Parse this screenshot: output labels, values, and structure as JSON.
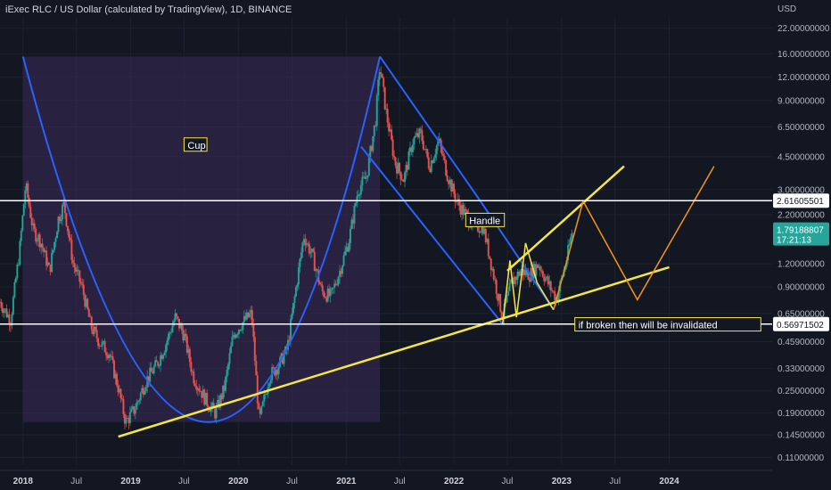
{
  "header": {
    "title": "iExec RLC / US Dollar (calculated by TradingView), 1D, BINANCE"
  },
  "colors": {
    "background": "#131722",
    "grid": "#1e222d",
    "up_candle": "#26a69a",
    "down_candle": "#ef5350",
    "cup_line": "#2962ff",
    "cup_fill": "#3b2a5a",
    "trend_line": "#f5e642",
    "forecast_line": "#f7931a",
    "level_line": "#ffffff",
    "current_price_badge": "#26a69a"
  },
  "chart_data": {
    "type": "candlestick",
    "title": "iExec RLC / US Dollar (calculated by TradingView), 1D, BINANCE",
    "y_unit": "USD",
    "y_scale": "log",
    "ylim": [
      0.1,
      25
    ],
    "xlim": [
      "2017-10-15",
      "2024-12-15"
    ],
    "y_ticks": [
      "22.00000000",
      "16.00000000",
      "12.00000000",
      "9.00000000",
      "6.50000000",
      "4.50000000",
      "3.00000000",
      "2.20000000",
      "1.20000000",
      "0.90000000",
      "0.65000000",
      "0.45900000",
      "0.33000000",
      "0.25000000",
      "0.19000000",
      "0.14500000",
      "0.11000000"
    ],
    "y_tick_values": [
      22,
      16,
      12,
      9,
      6.5,
      4.5,
      3,
      2.2,
      1.2,
      0.9,
      0.65,
      0.459,
      0.33,
      0.25,
      0.19,
      0.145,
      0.11
    ],
    "x_ticks": [
      {
        "label": "2018",
        "date": "2018-01-01",
        "year": true
      },
      {
        "label": "Jul",
        "date": "2018-07-01",
        "year": false
      },
      {
        "label": "2019",
        "date": "2019-01-01",
        "year": true
      },
      {
        "label": "Jul",
        "date": "2019-07-01",
        "year": false
      },
      {
        "label": "2020",
        "date": "2020-01-01",
        "year": true
      },
      {
        "label": "Jul",
        "date": "2020-07-01",
        "year": false
      },
      {
        "label": "2021",
        "date": "2021-01-01",
        "year": true
      },
      {
        "label": "Jul",
        "date": "2021-07-01",
        "year": false
      },
      {
        "label": "2022",
        "date": "2022-01-01",
        "year": true
      },
      {
        "label": "Jul",
        "date": "2022-07-01",
        "year": false
      },
      {
        "label": "2023",
        "date": "2023-01-01",
        "year": true
      },
      {
        "label": "Jul",
        "date": "2023-07-01",
        "year": false
      },
      {
        "label": "2024",
        "date": "2024-01-01",
        "year": true
      }
    ],
    "price_path": [
      [
        "2017-10-15",
        0.75
      ],
      [
        "2017-11-20",
        0.6
      ],
      [
        "2017-12-20",
        1.4
      ],
      [
        "2018-01-10",
        3.2
      ],
      [
        "2018-02-05",
        1.8
      ],
      [
        "2018-03-01",
        1.6
      ],
      [
        "2018-04-01",
        1.1
      ],
      [
        "2018-05-01",
        2.1
      ],
      [
        "2018-05-20",
        2.5
      ],
      [
        "2018-06-20",
        1.2
      ],
      [
        "2018-07-20",
        0.9
      ],
      [
        "2018-08-20",
        0.55
      ],
      [
        "2018-09-20",
        0.45
      ],
      [
        "2018-10-20",
        0.4
      ],
      [
        "2018-11-20",
        0.26
      ],
      [
        "2018-12-15",
        0.17
      ],
      [
        "2019-01-15",
        0.2
      ],
      [
        "2019-02-20",
        0.28
      ],
      [
        "2019-04-01",
        0.35
      ],
      [
        "2019-05-01",
        0.45
      ],
      [
        "2019-06-01",
        0.62
      ],
      [
        "2019-07-01",
        0.5
      ],
      [
        "2019-08-01",
        0.3
      ],
      [
        "2019-09-15",
        0.22
      ],
      [
        "2019-10-15",
        0.19
      ],
      [
        "2019-11-15",
        0.26
      ],
      [
        "2019-12-15",
        0.5
      ],
      [
        "2020-01-15",
        0.58
      ],
      [
        "2020-02-15",
        0.65
      ],
      [
        "2020-03-12",
        0.17
      ],
      [
        "2020-04-15",
        0.3
      ],
      [
        "2020-05-15",
        0.34
      ],
      [
        "2020-06-15",
        0.42
      ],
      [
        "2020-07-15",
        0.9
      ],
      [
        "2020-08-10",
        1.7
      ],
      [
        "2020-09-10",
        1.3
      ],
      [
        "2020-10-10",
        0.85
      ],
      [
        "2020-11-10",
        0.8
      ],
      [
        "2020-12-10",
        1.1
      ],
      [
        "2021-01-10",
        1.6
      ],
      [
        "2021-02-10",
        3.0
      ],
      [
        "2021-03-10",
        3.5
      ],
      [
        "2021-04-10",
        7.0
      ],
      [
        "2021-04-25",
        14.0
      ],
      [
        "2021-05-15",
        8.0
      ],
      [
        "2021-06-15",
        4.2
      ],
      [
        "2021-07-15",
        3.4
      ],
      [
        "2021-08-15",
        5.5
      ],
      [
        "2021-09-10",
        6.0
      ],
      [
        "2021-10-10",
        4.0
      ],
      [
        "2021-11-10",
        5.5
      ],
      [
        "2021-12-10",
        3.6
      ],
      [
        "2022-01-10",
        2.6
      ],
      [
        "2022-02-10",
        2.2
      ],
      [
        "2022-03-10",
        1.9
      ],
      [
        "2022-04-10",
        1.9
      ],
      [
        "2022-05-10",
        1.15
      ],
      [
        "2022-06-15",
        0.62
      ],
      [
        "2022-07-15",
        0.95
      ],
      [
        "2022-08-15",
        1.1
      ],
      [
        "2022-09-15",
        1.05
      ],
      [
        "2022-10-15",
        1.2
      ],
      [
        "2022-11-15",
        0.95
      ],
      [
        "2022-12-15",
        0.78
      ],
      [
        "2023-01-15",
        1.2
      ],
      [
        "2023-02-06",
        1.79
      ]
    ],
    "current_price": {
      "value": 1.79188807,
      "label": "1.79188807",
      "countdown": "17:21:13"
    },
    "levels": [
      {
        "name": "resistance",
        "value": 2.61605501,
        "label": "2.61605501"
      },
      {
        "name": "support",
        "value": 0.56971502,
        "label": "0.56971502"
      }
    ],
    "annotations": [
      {
        "name": "cup-label",
        "text": "Cup",
        "date": "2019-07-01",
        "value": 5.2
      },
      {
        "name": "handle-label",
        "text": "Handle",
        "date": "2022-02-10",
        "value": 2.05
      },
      {
        "name": "invalidation-label",
        "text": "if broken then will be invalidated",
        "date": "2023-02-15",
        "value": 0.565
      }
    ],
    "drawings": {
      "cup_curve": {
        "left_top": [
          "2018-01-01",
          15.5
        ],
        "bottom": [
          "2019-10-15",
          0.17
        ],
        "right_top": [
          "2021-04-25",
          15.5
        ]
      },
      "cup_fill_band": {
        "start": "2018-01-01",
        "end": "2021-04-25",
        "top": 15.5
      },
      "handle_channel": {
        "upper": [
          [
            "2021-04-25",
            15.5
          ],
          [
            "2022-04-01",
            2.6
          ],
          [
            "2022-12-05",
            0.68
          ]
        ],
        "lower": [
          [
            "2021-02-20",
            5.1
          ],
          [
            "2022-06-15",
            0.57
          ]
        ]
      },
      "support_trend": [
        [
          "2018-11-20",
          0.142
        ],
        [
          "2024-01-01",
          1.15
        ]
      ],
      "upper_trend": [
        [
          "2022-07-01",
          1.1
        ],
        [
          "2023-08-01",
          4.0
        ]
      ],
      "forecast_yellow": [
        [
          "2022-06-15",
          0.57
        ],
        [
          "2022-07-10",
          1.25
        ],
        [
          "2022-08-01",
          0.62
        ],
        [
          "2022-09-01",
          1.55
        ],
        [
          "2022-10-10",
          0.95
        ],
        [
          "2022-12-05",
          0.68
        ]
      ],
      "forecast_orange": [
        [
          "2022-12-05",
          0.68
        ],
        [
          "2023-03-15",
          2.6
        ],
        [
          "2023-09-15",
          0.77
        ],
        [
          "2024-06-01",
          4.0
        ]
      ]
    },
    "grid": true,
    "legend": "none"
  }
}
